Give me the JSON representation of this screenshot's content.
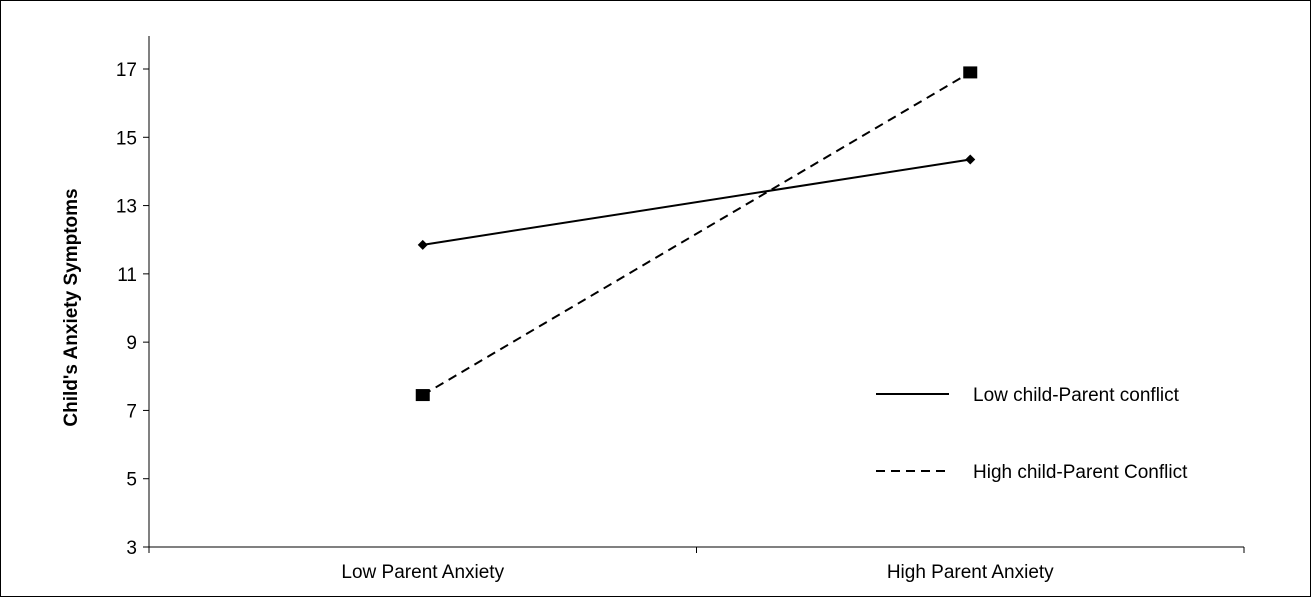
{
  "chart_data": {
    "type": "line",
    "categories": [
      "Low Parent Anxiety",
      "High Parent Anxiety"
    ],
    "series": [
      {
        "name": "Low child-Parent conflict",
        "values": [
          11.85,
          14.35
        ],
        "line_style": "solid",
        "marker": "diamond",
        "color": "#000000"
      },
      {
        "name": "High child-Parent Conflict",
        "values": [
          7.45,
          16.9
        ],
        "line_style": "dashed",
        "marker": "square",
        "color": "#000000"
      }
    ],
    "title": "",
    "xlabel": "",
    "ylabel": "Child's Anxiety Symptoms",
    "ylim": [
      3,
      18
    ],
    "yticks": [
      "3",
      "5",
      "7",
      "9",
      "11",
      "13",
      "15",
      "17"
    ],
    "grid": false,
    "legend_position": "right"
  }
}
